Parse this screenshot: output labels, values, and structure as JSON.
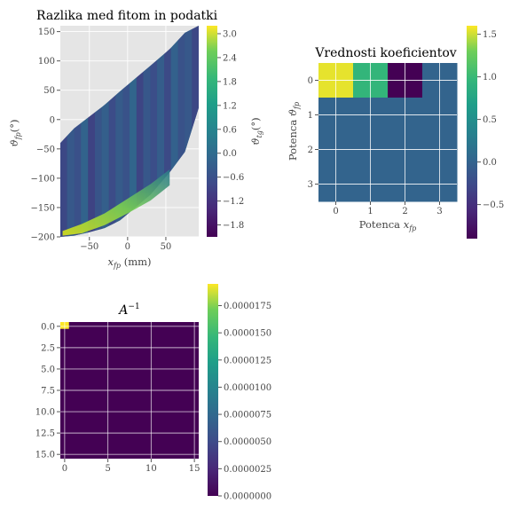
{
  "figure": {
    "background": "#ffffff",
    "axes_background": "#e5e5e5",
    "grid_color": "#ffffff",
    "tick_color": "#555555"
  },
  "chart_data": [
    {
      "type": "heatmap",
      "title": "Razlika med fitom in podatki",
      "xlabel": "$x_{fp}$ (mm)",
      "ylabel": "$\\vartheta_{fp}(°)$",
      "xlim": [
        -88,
        93
      ],
      "ylim": [
        -200,
        160
      ],
      "xticks": [
        -50,
        0,
        50
      ],
      "yticks": [
        -200,
        -150,
        -100,
        -50,
        0,
        50,
        100,
        150
      ],
      "grid": true,
      "colormap": "viridis",
      "colorbar": {
        "label": "$\\vartheta_{tg}(°)$",
        "range": [
          -2.1,
          3.2
        ],
        "ticks": [
          3.0,
          2.4,
          1.8,
          1.2,
          0.6,
          0.0,
          -0.6,
          -1.2,
          -1.8
        ],
        "tick_labels": [
          "3.0",
          "2.4",
          "1.8",
          "1.2",
          "0.6",
          "0.0",
          "−0.6",
          "−1.2",
          "−1.8"
        ]
      },
      "region": {
        "description_points_x": [
          -88,
          -30,
          10,
          55,
          75,
          93,
          93,
          55,
          10,
          -30,
          -75,
          -88
        ],
        "upper_y": [
          -40,
          25,
          70,
          120,
          150,
          160
        ],
        "lower_y": [
          -200,
          -185,
          -150,
          -90,
          -35,
          20
        ]
      },
      "highlight_band_value": 2.0,
      "typical_value": -0.3
    },
    {
      "type": "heatmap",
      "title": "Vrednosti koeficientov",
      "xlabel": "Potenca $x_{fp}$",
      "ylabel": "Potenca $\\vartheta_{fp}$",
      "x_categories": [
        "0",
        "1",
        "2",
        "3"
      ],
      "y_categories": [
        "0",
        "1",
        "2",
        "3"
      ],
      "values": [
        [
          1.55,
          0.95,
          -0.9,
          0.0
        ],
        [
          0.0,
          0.0,
          0.0,
          0.0
        ],
        [
          0.0,
          0.0,
          0.0,
          0.0
        ],
        [
          0.0,
          0.0,
          0.0,
          0.0
        ]
      ],
      "grid": true,
      "colormap": "viridis",
      "colorbar": {
        "range": [
          -0.9,
          1.6
        ],
        "ticks": [
          1.5,
          1.0,
          0.5,
          0.0,
          -0.5
        ],
        "tick_labels": [
          "1.5",
          "1.0",
          "0.5",
          "0.0",
          "−0.5"
        ]
      }
    },
    {
      "type": "heatmap",
      "title": "$A^{-1}$",
      "size": 16,
      "xticks": [
        0,
        5,
        10,
        15
      ],
      "yticks": [
        0.0,
        2.5,
        5.0,
        7.5,
        10.0,
        12.5,
        15.0
      ],
      "ytick_labels": [
        "0.0",
        "2.5",
        "5.0",
        "7.5",
        "10.0",
        "12.5",
        "15.0"
      ],
      "xtick_labels": [
        "0",
        "5",
        "10",
        "15"
      ],
      "peak_cell": [
        0,
        0
      ],
      "peak_value": 1.95e-05,
      "other_value": 0.0,
      "grid": true,
      "colormap": "viridis",
      "colorbar": {
        "range": [
          0.0,
          1.95e-05
        ],
        "ticks": [
          1.75e-05,
          1.5e-05,
          1.25e-05,
          1e-05,
          7.5e-06,
          5e-06,
          2.5e-06,
          0.0
        ],
        "tick_labels": [
          "0.0000175",
          "0.0000150",
          "0.0000125",
          "0.0000100",
          "0.0000075",
          "0.0000050",
          "0.0000025",
          "0.0000000"
        ]
      }
    }
  ]
}
